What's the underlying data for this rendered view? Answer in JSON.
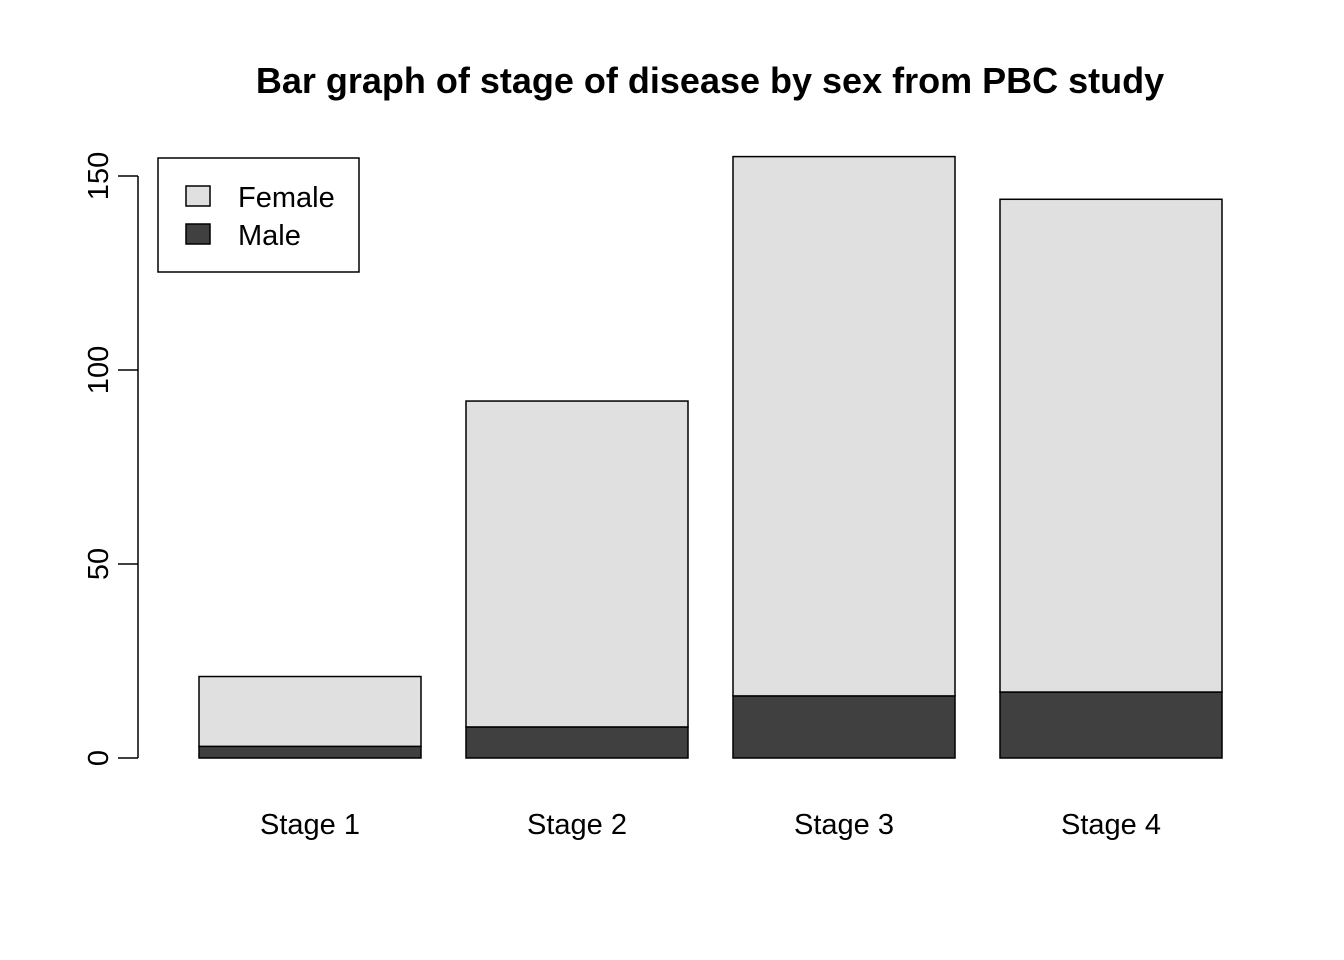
{
  "chart_data": {
    "type": "bar",
    "stacked": true,
    "title": "Bar graph of stage of disease by sex from PBC study",
    "xlabel": "",
    "ylabel": "",
    "categories": [
      "Stage 1",
      "Stage 2",
      "Stage 3",
      "Stage 4"
    ],
    "series": [
      {
        "name": "Male",
        "values": [
          3,
          8,
          16,
          17
        ],
        "color": "#404040"
      },
      {
        "name": "Female",
        "values": [
          18,
          84,
          139,
          127
        ],
        "color": "#e0e0e0"
      }
    ],
    "ylim": [
      0,
      155
    ],
    "yticks": [
      "0",
      "50",
      "100",
      "150"
    ],
    "legend": {
      "position": "top-left",
      "entries": [
        "Female",
        "Male"
      ]
    },
    "grid": false
  }
}
